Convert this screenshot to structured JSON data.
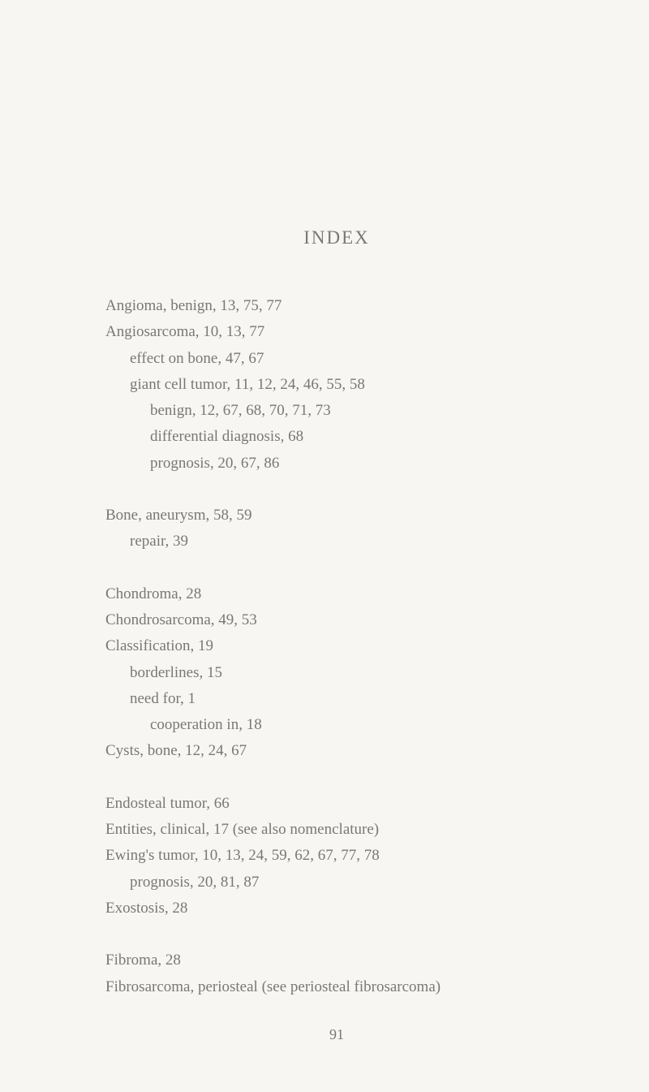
{
  "title": "INDEX",
  "blocks": [
    {
      "lines": [
        {
          "text": "Angioma, benign, 13, 75, 77",
          "indent": 0
        },
        {
          "text": "Angiosarcoma, 10, 13, 77",
          "indent": 0
        },
        {
          "text": "effect on bone, 47, 67",
          "indent": 1
        },
        {
          "text": "giant cell tumor, 11, 12, 24, 46, 55, 58",
          "indent": 1
        },
        {
          "text": "benign, 12, 67, 68, 70, 71, 73",
          "indent": 2
        },
        {
          "text": "differential diagnosis, 68",
          "indent": 2
        },
        {
          "text": "prognosis, 20, 67, 86",
          "indent": 2
        }
      ]
    },
    {
      "lines": [
        {
          "text": "Bone, aneurysm, 58, 59",
          "indent": 0
        },
        {
          "text": "repair, 39",
          "indent": 1
        }
      ]
    },
    {
      "lines": [
        {
          "text": "Chondroma, 28",
          "indent": 0
        },
        {
          "text": "Chondrosarcoma, 49, 53",
          "indent": 0
        },
        {
          "text": "Classification, 19",
          "indent": 0
        },
        {
          "text": "borderlines, 15",
          "indent": 1
        },
        {
          "text": "need for, 1",
          "indent": 1
        },
        {
          "text": "cooperation in, 18",
          "indent": 2
        },
        {
          "text": "Cysts, bone, 12, 24, 67",
          "indent": 0
        }
      ]
    },
    {
      "lines": [
        {
          "text": "Endosteal tumor, 66",
          "indent": 0
        },
        {
          "text": "Entities, clinical, 17 (see also nomenclature)",
          "indent": 0
        },
        {
          "text": "Ewing's tumor, 10, 13, 24, 59, 62, 67, 77, 78",
          "indent": 0
        },
        {
          "text": "prognosis, 20, 81, 87",
          "indent": 1
        },
        {
          "text": "Exostosis, 28",
          "indent": 0
        }
      ]
    },
    {
      "lines": [
        {
          "text": "Fibroma, 28",
          "indent": 0
        },
        {
          "text": "Fibrosarcoma, periosteal (see periosteal fibrosarcoma)",
          "indent": 0
        }
      ]
    }
  ],
  "pageNumber": "91"
}
